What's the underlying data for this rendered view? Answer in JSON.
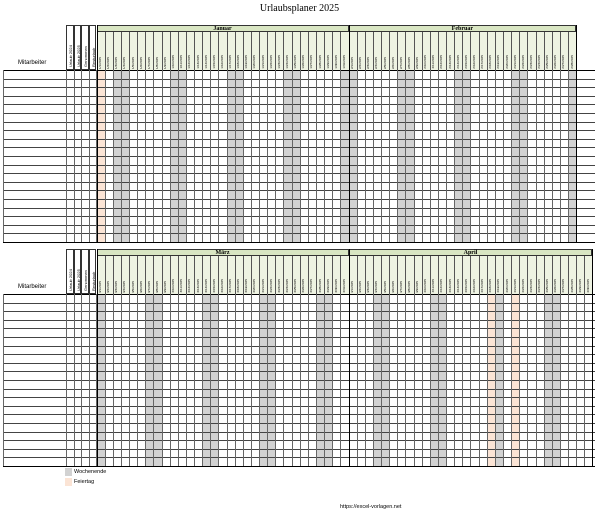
{
  "title": "Urlaubsplaner 2025",
  "employee_header": "Mitarbeiter",
  "side_headers": [
    "Urlaub 2024",
    "Urlaub 2025",
    "Genommen",
    "Resturlaub"
  ],
  "blocks": [
    {
      "months": [
        {
          "name": "Januar",
          "days": 31,
          "month_num": 1,
          "first_weekday": 3,
          "holidays": [
            1
          ]
        },
        {
          "name": "Februar",
          "days": 28,
          "month_num": 2,
          "first_weekday": 6,
          "holidays": []
        }
      ]
    },
    {
      "months": [
        {
          "name": "März",
          "days": 31,
          "month_num": 3,
          "first_weekday": 6,
          "holidays": []
        },
        {
          "name": "April",
          "days": 30,
          "month_num": 4,
          "first_weekday": 2,
          "holidays": [
            18,
            21
          ]
        }
      ]
    }
  ],
  "year": 2025,
  "rows_per_block": 20,
  "legend": [
    {
      "label": "Wochenende",
      "color": "#d2d2d2"
    },
    {
      "label": "Feiertag",
      "color": "#fbe4d5"
    }
  ],
  "source": "https://excel-vorlagen.net"
}
